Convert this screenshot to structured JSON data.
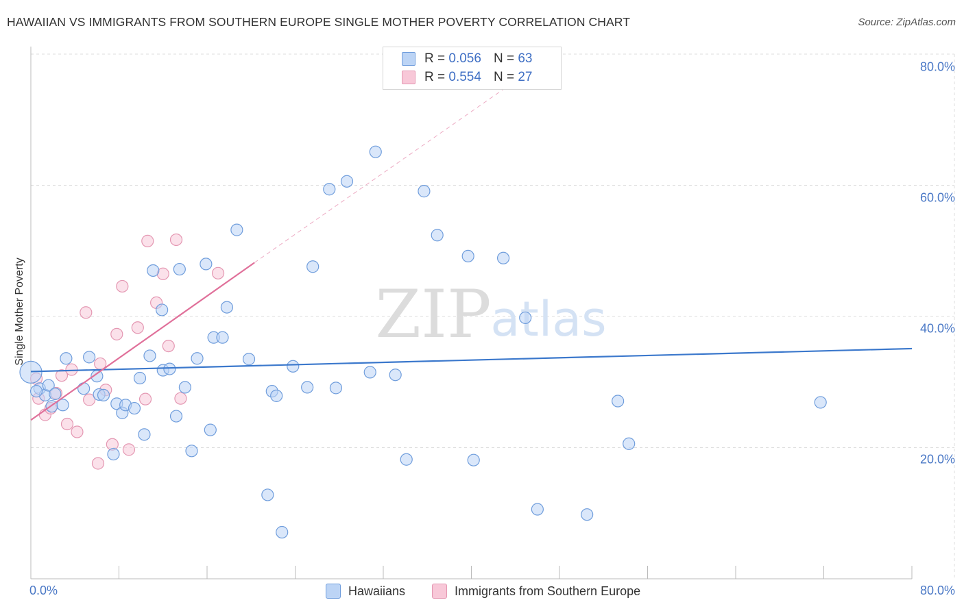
{
  "title": "HAWAIIAN VS IMMIGRANTS FROM SOUTHERN EUROPE SINGLE MOTHER POVERTY CORRELATION CHART",
  "source": "Source: ZipAtlas.com",
  "watermark": {
    "zip": "ZIP",
    "atlas": "atlas"
  },
  "legend_top": [
    {
      "r_label": "R =",
      "r_value": "0.056",
      "n_label": "N =",
      "n_value": "63"
    },
    {
      "r_label": "R =",
      "r_value": "0.554",
      "n_label": "N =",
      "n_value": "27"
    }
  ],
  "colors": {
    "blue_fill": "#bcd4f5",
    "blue_stroke": "#6f9ddc",
    "blue_line": "#3b78cc",
    "pink_fill": "#f8c8d8",
    "pink_stroke": "#e497b2",
    "pink_line": "#e0709a",
    "tick_text": "#4a78c6",
    "grid": "#dddddd"
  },
  "chart_data": {
    "type": "scatter",
    "title": "HAWAIIAN VS IMMIGRANTS FROM SOUTHERN EUROPE SINGLE MOTHER POVERTY CORRELATION CHART",
    "xlabel": "",
    "ylabel": "Single Mother Poverty",
    "xlim": [
      0,
      80
    ],
    "ylim": [
      0,
      80
    ],
    "x_tick_labels": [
      "0.0%",
      "80.0%"
    ],
    "y_tick_labels": [
      "20.0%",
      "40.0%",
      "60.0%",
      "80.0%"
    ],
    "y_ticks": [
      20,
      40,
      60,
      80
    ],
    "series": [
      {
        "name": "Hawaiians",
        "R": 0.056,
        "N": 63,
        "color": "blue",
        "trend": {
          "x0": 0,
          "y0": 31.6,
          "x1": 80,
          "y1": 35.1,
          "dashed_to": null
        },
        "points": [
          [
            0.0,
            31.5
          ],
          [
            0.8,
            29.0
          ],
          [
            1.3,
            28.0
          ],
          [
            1.6,
            29.5
          ],
          [
            1.9,
            26.3
          ],
          [
            2.2,
            28.2
          ],
          [
            2.9,
            26.5
          ],
          [
            3.2,
            33.6
          ],
          [
            4.8,
            29.0
          ],
          [
            5.3,
            33.8
          ],
          [
            6.0,
            30.9
          ],
          [
            6.2,
            28.1
          ],
          [
            6.6,
            28.0
          ],
          [
            7.5,
            19.0
          ],
          [
            7.8,
            26.7
          ],
          [
            8.3,
            25.3
          ],
          [
            8.6,
            26.5
          ],
          [
            9.4,
            26.0
          ],
          [
            9.9,
            30.6
          ],
          [
            10.3,
            22.0
          ],
          [
            10.8,
            34.0
          ],
          [
            11.1,
            47.0
          ],
          [
            11.9,
            41.0
          ],
          [
            12.0,
            31.8
          ],
          [
            12.6,
            32.0
          ],
          [
            13.2,
            24.8
          ],
          [
            13.5,
            47.2
          ],
          [
            14.0,
            29.2
          ],
          [
            14.6,
            19.5
          ],
          [
            15.1,
            33.6
          ],
          [
            15.9,
            48.0
          ],
          [
            16.3,
            22.7
          ],
          [
            16.6,
            36.8
          ],
          [
            17.4,
            36.8
          ],
          [
            17.8,
            41.4
          ],
          [
            18.7,
            53.2
          ],
          [
            19.8,
            33.5
          ],
          [
            21.5,
            12.8
          ],
          [
            21.9,
            28.6
          ],
          [
            22.3,
            27.9
          ],
          [
            22.8,
            7.1
          ],
          [
            23.8,
            32.4
          ],
          [
            25.1,
            29.2
          ],
          [
            25.6,
            47.6
          ],
          [
            27.1,
            59.4
          ],
          [
            27.7,
            29.1
          ],
          [
            28.7,
            60.6
          ],
          [
            30.8,
            31.5
          ],
          [
            31.3,
            65.1
          ],
          [
            33.1,
            31.1
          ],
          [
            34.1,
            18.2
          ],
          [
            35.7,
            59.1
          ],
          [
            36.9,
            52.4
          ],
          [
            39.7,
            49.2
          ],
          [
            40.2,
            18.1
          ],
          [
            42.9,
            48.9
          ],
          [
            44.9,
            39.8
          ],
          [
            46.0,
            10.6
          ],
          [
            50.5,
            9.8
          ],
          [
            53.3,
            27.1
          ],
          [
            54.3,
            20.6
          ],
          [
            71.7,
            26.9
          ],
          [
            0.5,
            28.6
          ]
        ]
      },
      {
        "name": "Immigrants from Southern Europe",
        "R": 0.554,
        "N": 27,
        "color": "pink",
        "trend": {
          "x0": 0,
          "y0": 24.2,
          "x1": 20.3,
          "y1": 48.2,
          "dashed_to": [
            44.5,
            76.5
          ]
        },
        "points": [
          [
            0.5,
            30.5
          ],
          [
            0.7,
            27.5
          ],
          [
            1.3,
            25.0
          ],
          [
            1.8,
            26.0
          ],
          [
            2.3,
            28.3
          ],
          [
            2.8,
            31.0
          ],
          [
            3.3,
            23.6
          ],
          [
            3.7,
            31.9
          ],
          [
            4.2,
            22.4
          ],
          [
            5.0,
            40.6
          ],
          [
            5.3,
            27.3
          ],
          [
            6.1,
            17.6
          ],
          [
            6.3,
            32.8
          ],
          [
            6.8,
            28.8
          ],
          [
            7.4,
            20.5
          ],
          [
            7.8,
            37.3
          ],
          [
            8.3,
            44.6
          ],
          [
            8.9,
            19.7
          ],
          [
            9.7,
            38.3
          ],
          [
            10.4,
            27.4
          ],
          [
            10.6,
            51.5
          ],
          [
            11.4,
            42.1
          ],
          [
            12.0,
            46.5
          ],
          [
            12.5,
            35.5
          ],
          [
            13.2,
            51.7
          ],
          [
            13.6,
            27.5
          ],
          [
            17.0,
            46.6
          ]
        ]
      }
    ]
  },
  "legend_bottom": [
    {
      "label": "Hawaiians"
    },
    {
      "label": "Immigrants from Southern Europe"
    }
  ]
}
